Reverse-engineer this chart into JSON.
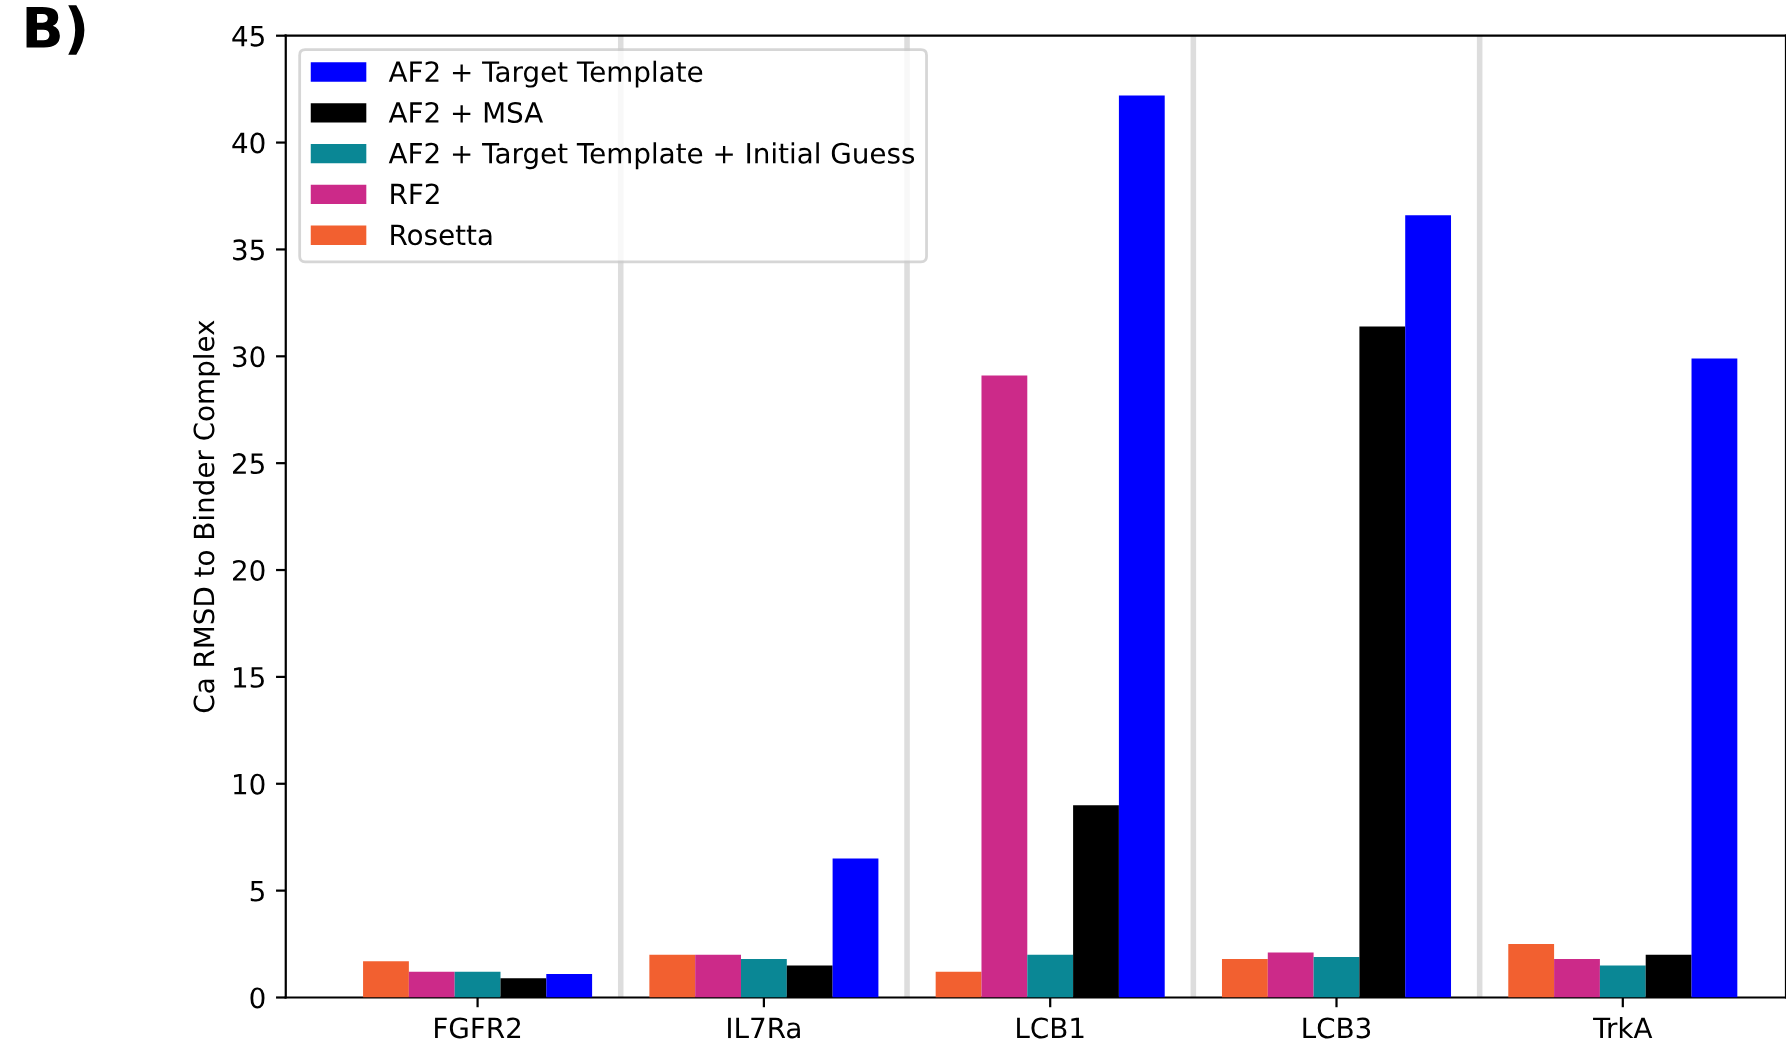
{
  "chart_data": {
    "type": "bar",
    "ylabel": "Ca RMSD to Binder Complex",
    "annotations": [
      "B)"
    ],
    "categories": [
      "FGFR2",
      "IL7Ra",
      "LCB1",
      "LCB3",
      "TrkA"
    ],
    "series": [
      {
        "name": "Rosetta",
        "color": "#f26030",
        "values": [
          1.7,
          2.0,
          1.2,
          1.8,
          2.5
        ]
      },
      {
        "name": "RF2",
        "color": "#cc2a89",
        "values": [
          1.2,
          2.0,
          29.1,
          2.1,
          1.8
        ]
      },
      {
        "name": "AF2 + Target Template + Initial Guess",
        "color": "#0a8795",
        "values": [
          1.2,
          1.8,
          2.0,
          1.9,
          1.5
        ]
      },
      {
        "name": "AF2 + MSA",
        "color": "#000000",
        "values": [
          0.9,
          1.5,
          9.0,
          31.4,
          2.0
        ]
      },
      {
        "name": "AF2 + Target Template",
        "color": "#0000ff",
        "values": [
          1.1,
          6.5,
          42.2,
          36.6,
          29.9
        ]
      }
    ],
    "ylim": [
      0,
      45
    ],
    "yticks": [
      0,
      5,
      10,
      15,
      20,
      25,
      30,
      35,
      40,
      45
    ],
    "grid": false,
    "legend": "top left"
  }
}
